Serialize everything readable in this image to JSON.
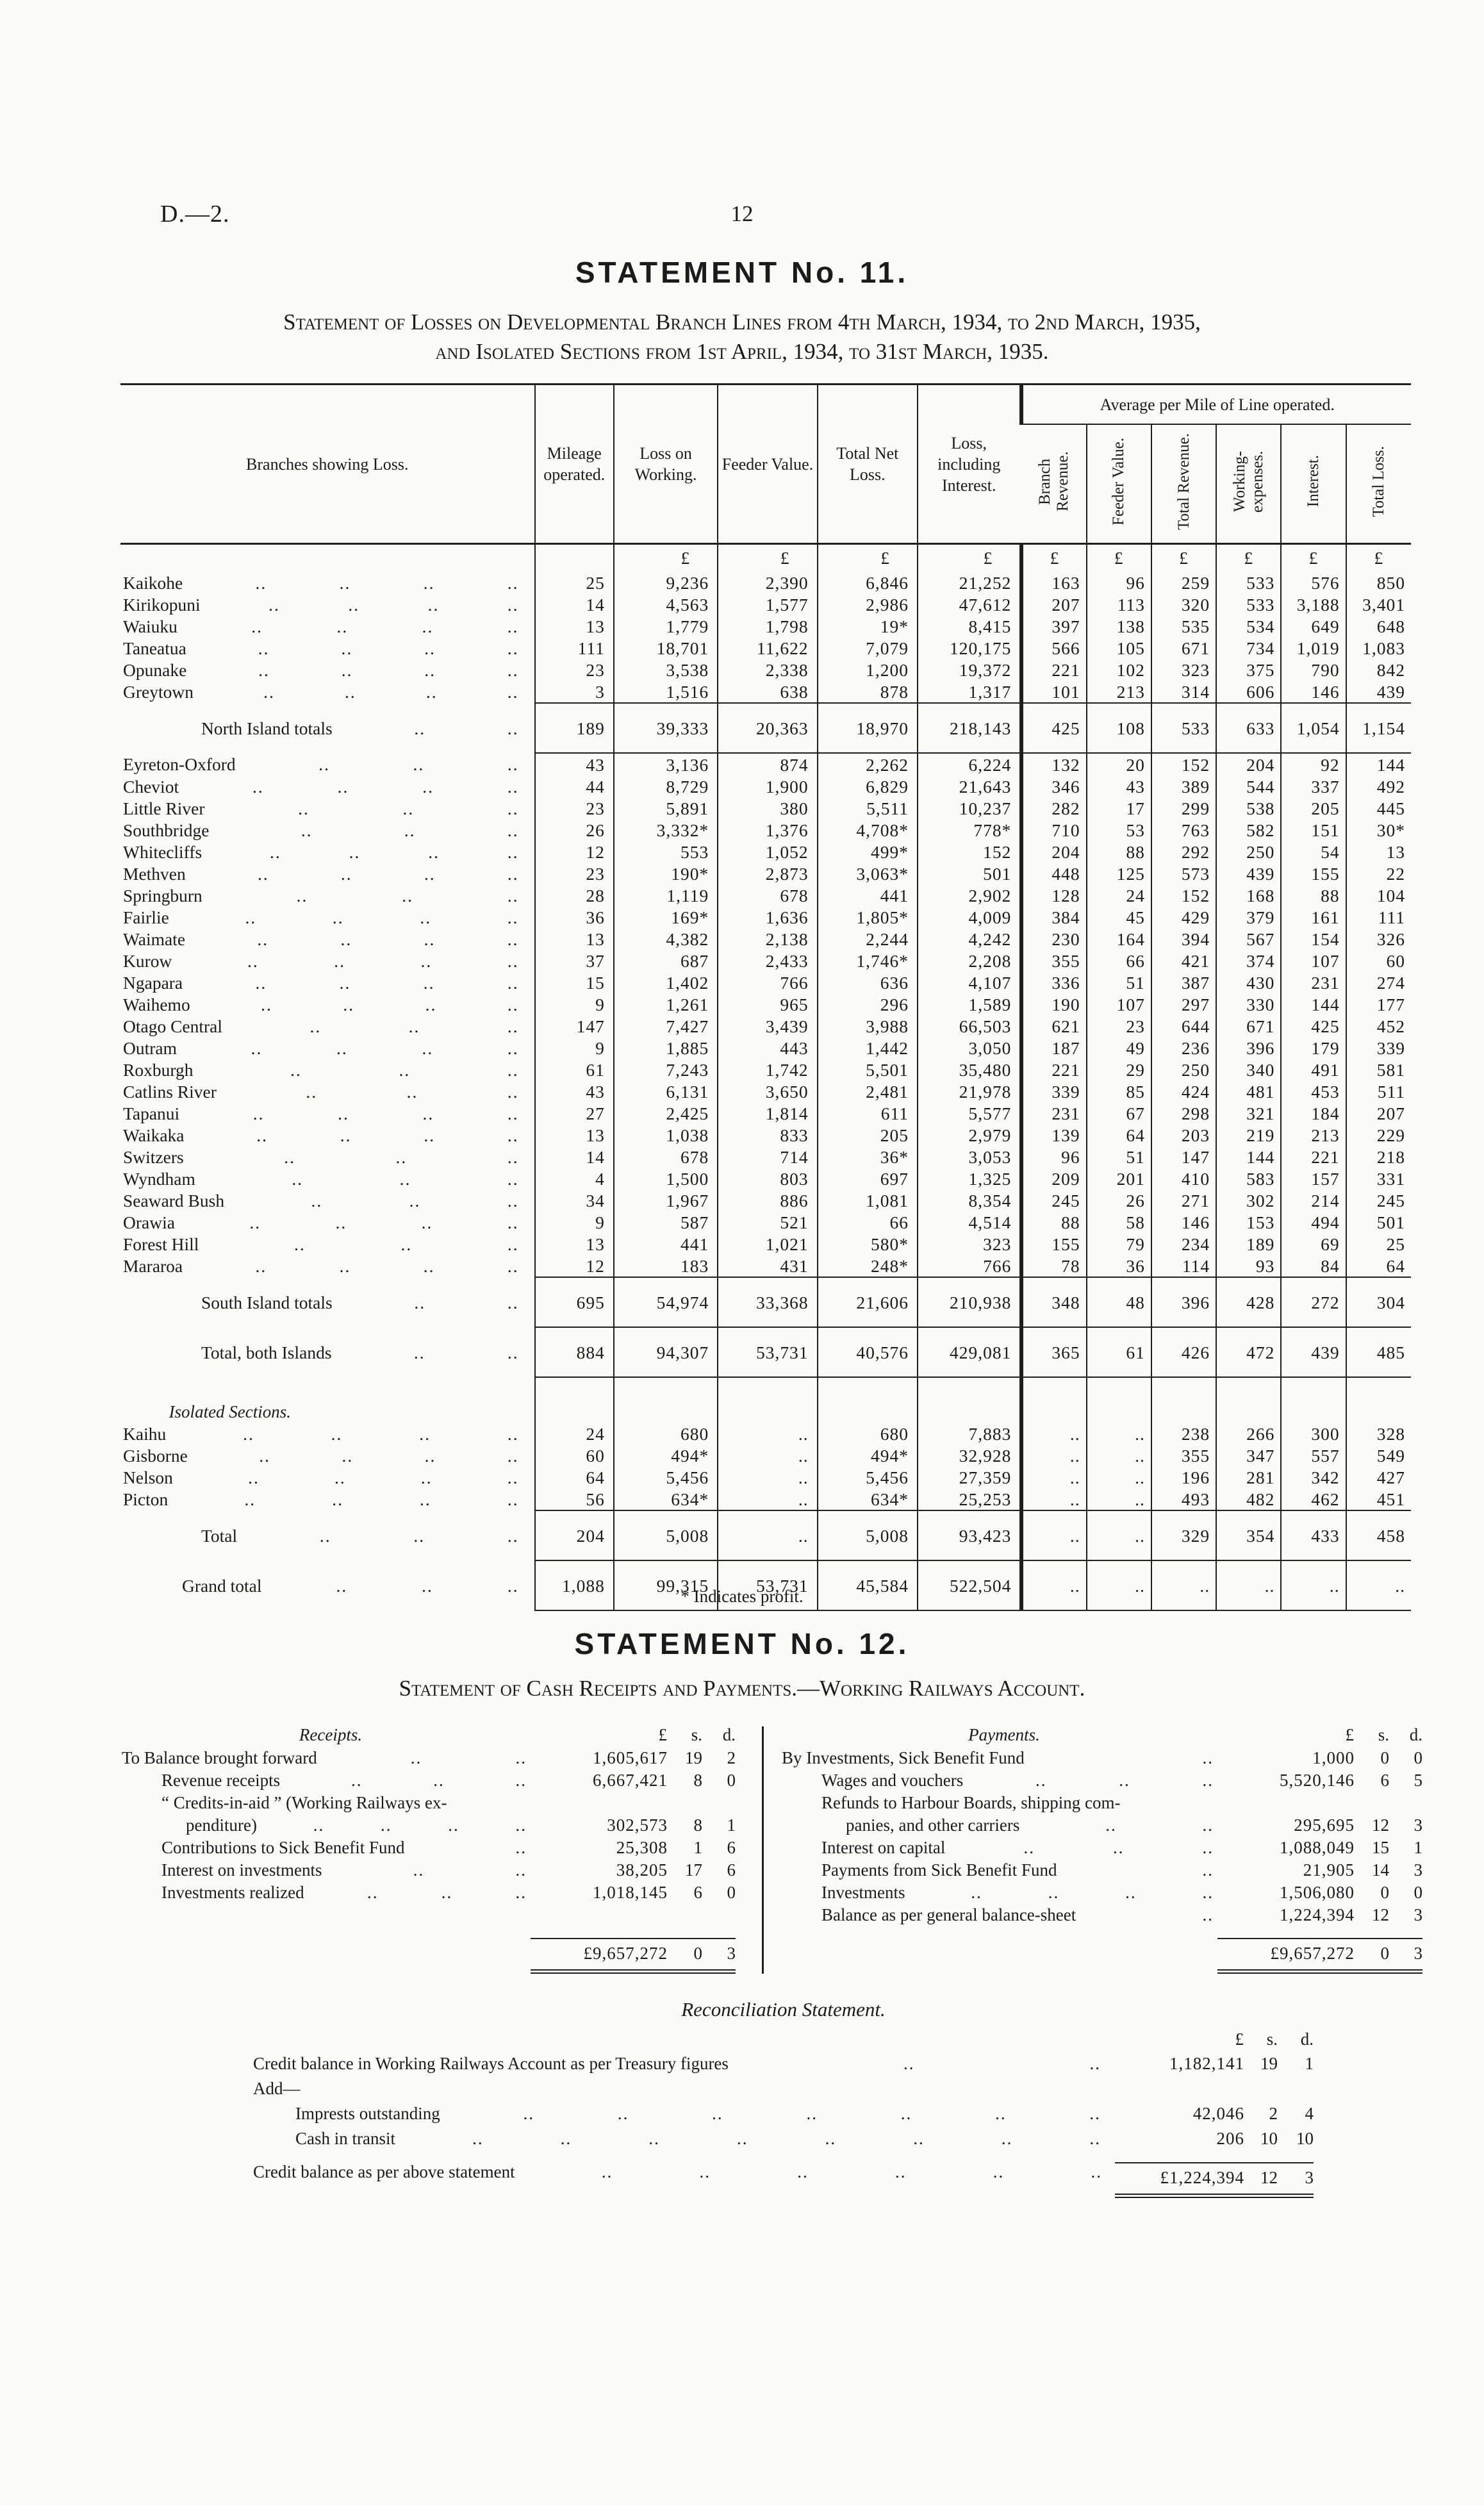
{
  "page": {
    "doc_ref": "D.—2.",
    "page_number": "12"
  },
  "statement11": {
    "title": "STATEMENT No. 11.",
    "subtitle_line1": "Statement of Losses on Developmental Branch Lines from 4th March, 1934, to 2nd March, 1935,",
    "subtitle_line2": "and Isolated Sections from 1st April, 1934, to 31st March, 1935.",
    "columns": [
      "Branches showing Loss.",
      "Mileage operated.",
      "Loss on Working.",
      "Feeder Value.",
      "Total Net Loss.",
      "Loss, including Interest."
    ],
    "avg_group_header": "Average per Mile of Line operated.",
    "avg_columns": [
      "Branch Revenue.",
      "Feeder Value.",
      "Total Revenue.",
      "Working-expenses.",
      "Interest.",
      "Total Loss."
    ],
    "currency_symbol": "£",
    "footnote": "* Indicates profit.",
    "rows": [
      {
        "t": "currency"
      },
      {
        "t": "data",
        "name": "Kaikohe",
        "l": 4,
        "v": [
          "25",
          "9,236",
          "2,390",
          "6,846",
          "21,252",
          "163",
          "96",
          "259",
          "533",
          "576",
          "850"
        ]
      },
      {
        "t": "data",
        "name": "Kirikopuni",
        "l": 4,
        "v": [
          "14",
          "4,563",
          "1,577",
          "2,986",
          "47,612",
          "207",
          "113",
          "320",
          "533",
          "3,188",
          "3,401"
        ]
      },
      {
        "t": "data",
        "name": "Waiuku",
        "l": 4,
        "v": [
          "13",
          "1,779",
          "1,798",
          "19*",
          "8,415",
          "397",
          "138",
          "535",
          "534",
          "649",
          "648"
        ]
      },
      {
        "t": "data",
        "name": "Taneatua",
        "l": 4,
        "v": [
          "111",
          "18,701",
          "11,622",
          "7,079",
          "120,175",
          "566",
          "105",
          "671",
          "734",
          "1,019",
          "1,083"
        ]
      },
      {
        "t": "data",
        "name": "Opunake",
        "l": 4,
        "v": [
          "23",
          "3,538",
          "2,338",
          "1,200",
          "19,372",
          "221",
          "102",
          "323",
          "375",
          "790",
          "842"
        ]
      },
      {
        "t": "data",
        "name": "Greytown",
        "l": 4,
        "v": [
          "3",
          "1,516",
          "638",
          "878",
          "1,317",
          "101",
          "213",
          "314",
          "606",
          "146",
          "439"
        ]
      },
      {
        "t": "total",
        "name": "North Island totals",
        "l": 2,
        "v": [
          "189",
          "39,333",
          "20,363",
          "18,970",
          "218,143",
          "425",
          "108",
          "533",
          "633",
          "1,054",
          "1,154"
        ]
      },
      {
        "t": "data",
        "name": "Eyreton-Oxford",
        "l": 3,
        "v": [
          "43",
          "3,136",
          "874",
          "2,262",
          "6,224",
          "132",
          "20",
          "152",
          "204",
          "92",
          "144"
        ]
      },
      {
        "t": "data",
        "name": "Cheviot",
        "l": 4,
        "v": [
          "44",
          "8,729",
          "1,900",
          "6,829",
          "21,643",
          "346",
          "43",
          "389",
          "544",
          "337",
          "492"
        ]
      },
      {
        "t": "data",
        "name": "Little River",
        "l": 3,
        "v": [
          "23",
          "5,891",
          "380",
          "5,511",
          "10,237",
          "282",
          "17",
          "299",
          "538",
          "205",
          "445"
        ]
      },
      {
        "t": "data",
        "name": "Southbridge",
        "l": 3,
        "v": [
          "26",
          "3,332*",
          "1,376",
          "4,708*",
          "778*",
          "710",
          "53",
          "763",
          "582",
          "151",
          "30*"
        ]
      },
      {
        "t": "data",
        "name": "Whitecliffs",
        "l": 4,
        "v": [
          "12",
          "553",
          "1,052",
          "499*",
          "152",
          "204",
          "88",
          "292",
          "250",
          "54",
          "13"
        ]
      },
      {
        "t": "data",
        "name": "Methven",
        "l": 4,
        "v": [
          "23",
          "190*",
          "2,873",
          "3,063*",
          "501",
          "448",
          "125",
          "573",
          "439",
          "155",
          "22"
        ]
      },
      {
        "t": "data",
        "name": "Springburn",
        "l": 3,
        "v": [
          "28",
          "1,119",
          "678",
          "441",
          "2,902",
          "128",
          "24",
          "152",
          "168",
          "88",
          "104"
        ]
      },
      {
        "t": "data",
        "name": "Fairlie",
        "l": 4,
        "v": [
          "36",
          "169*",
          "1,636",
          "1,805*",
          "4,009",
          "384",
          "45",
          "429",
          "379",
          "161",
          "111"
        ]
      },
      {
        "t": "data",
        "name": "Waimate",
        "l": 4,
        "v": [
          "13",
          "4,382",
          "2,138",
          "2,244",
          "4,242",
          "230",
          "164",
          "394",
          "567",
          "154",
          "326"
        ]
      },
      {
        "t": "data",
        "name": "Kurow",
        "l": 4,
        "v": [
          "37",
          "687",
          "2,433",
          "1,746*",
          "2,208",
          "355",
          "66",
          "421",
          "374",
          "107",
          "60"
        ]
      },
      {
        "t": "data",
        "name": "Ngapara",
        "l": 4,
        "v": [
          "15",
          "1,402",
          "766",
          "636",
          "4,107",
          "336",
          "51",
          "387",
          "430",
          "231",
          "274"
        ]
      },
      {
        "t": "data",
        "name": "Waihemo",
        "l": 4,
        "v": [
          "9",
          "1,261",
          "965",
          "296",
          "1,589",
          "190",
          "107",
          "297",
          "330",
          "144",
          "177"
        ]
      },
      {
        "t": "data",
        "name": "Otago Central",
        "l": 3,
        "v": [
          "147",
          "7,427",
          "3,439",
          "3,988",
          "66,503",
          "621",
          "23",
          "644",
          "671",
          "425",
          "452"
        ]
      },
      {
        "t": "data",
        "name": "Outram",
        "l": 4,
        "v": [
          "9",
          "1,885",
          "443",
          "1,442",
          "3,050",
          "187",
          "49",
          "236",
          "396",
          "179",
          "339"
        ]
      },
      {
        "t": "data",
        "name": "Roxburgh",
        "l": 3,
        "v": [
          "61",
          "7,243",
          "1,742",
          "5,501",
          "35,480",
          "221",
          "29",
          "250",
          "340",
          "491",
          "581"
        ]
      },
      {
        "t": "data",
        "name": "Catlins River",
        "l": 3,
        "v": [
          "43",
          "6,131",
          "3,650",
          "2,481",
          "21,978",
          "339",
          "85",
          "424",
          "481",
          "453",
          "511"
        ]
      },
      {
        "t": "data",
        "name": "Tapanui",
        "l": 4,
        "v": [
          "27",
          "2,425",
          "1,814",
          "611",
          "5,577",
          "231",
          "67",
          "298",
          "321",
          "184",
          "207"
        ]
      },
      {
        "t": "data",
        "name": "Waikaka",
        "l": 4,
        "v": [
          "13",
          "1,038",
          "833",
          "205",
          "2,979",
          "139",
          "64",
          "203",
          "219",
          "213",
          "229"
        ]
      },
      {
        "t": "data",
        "name": "Switzers",
        "l": 3,
        "v": [
          "14",
          "678",
          "714",
          "36*",
          "3,053",
          "96",
          "51",
          "147",
          "144",
          "221",
          "218"
        ]
      },
      {
        "t": "data",
        "name": "Wyndham",
        "l": 3,
        "v": [
          "4",
          "1,500",
          "803",
          "697",
          "1,325",
          "209",
          "201",
          "410",
          "583",
          "157",
          "331"
        ]
      },
      {
        "t": "data",
        "name": "Seaward Bush",
        "l": 3,
        "v": [
          "34",
          "1,967",
          "886",
          "1,081",
          "8,354",
          "245",
          "26",
          "271",
          "302",
          "214",
          "245"
        ]
      },
      {
        "t": "data",
        "name": "Orawia",
        "l": 4,
        "v": [
          "9",
          "587",
          "521",
          "66",
          "4,514",
          "88",
          "58",
          "146",
          "153",
          "494",
          "501"
        ]
      },
      {
        "t": "data",
        "name": "Forest Hill",
        "l": 3,
        "v": [
          "13",
          "441",
          "1,021",
          "580*",
          "323",
          "155",
          "79",
          "234",
          "189",
          "69",
          "25"
        ]
      },
      {
        "t": "data",
        "name": "Mararoa",
        "l": 4,
        "v": [
          "12",
          "183",
          "431",
          "248*",
          "766",
          "78",
          "36",
          "114",
          "93",
          "84",
          "64"
        ]
      },
      {
        "t": "total",
        "name": "South Island totals",
        "l": 2,
        "v": [
          "695",
          "54,974",
          "33,368",
          "21,606",
          "210,938",
          "348",
          "48",
          "396",
          "428",
          "272",
          "304"
        ]
      },
      {
        "t": "total",
        "name": "Total, both Islands",
        "l": 2,
        "v": [
          "884",
          "94,307",
          "53,731",
          "40,576",
          "429,081",
          "365",
          "61",
          "426",
          "472",
          "439",
          "485"
        ]
      },
      {
        "t": "section",
        "name": "Isolated Sections."
      },
      {
        "t": "data",
        "name": "Kaihu",
        "l": 4,
        "v": [
          "24",
          "680",
          "..",
          "680",
          "7,883",
          "..",
          "..",
          "238",
          "266",
          "300",
          "328"
        ]
      },
      {
        "t": "data",
        "name": "Gisborne",
        "l": 4,
        "v": [
          "60",
          "494*",
          "..",
          "494*",
          "32,928",
          "..",
          "..",
          "355",
          "347",
          "557",
          "549"
        ]
      },
      {
        "t": "data",
        "name": "Nelson",
        "l": 4,
        "v": [
          "64",
          "5,456",
          "..",
          "5,456",
          "27,359",
          "..",
          "..",
          "196",
          "281",
          "342",
          "427"
        ]
      },
      {
        "t": "data",
        "name": "Picton",
        "l": 4,
        "v": [
          "56",
          "634*",
          "..",
          "634*",
          "25,253",
          "..",
          "..",
          "493",
          "482",
          "462",
          "451"
        ]
      },
      {
        "t": "total",
        "name": "Total",
        "l": 3,
        "v": [
          "204",
          "5,008",
          "..",
          "5,008",
          "93,423",
          "..",
          "..",
          "329",
          "354",
          "433",
          "458"
        ]
      },
      {
        "t": "grand",
        "name": "Grand total",
        "l": 3,
        "v": [
          "1,088",
          "99,315",
          "53,731",
          "45,584",
          "522,504",
          "..",
          "..",
          "..",
          "..",
          "..",
          ".."
        ]
      }
    ]
  },
  "statement12": {
    "title": "STATEMENT No. 12.",
    "subtitle": "Statement of Cash Receipts and Payments.—Working Railways Account.",
    "col_pound": "£",
    "col_s": "s.",
    "col_d": "d.",
    "receipts": {
      "heading": "Receipts.",
      "items": [
        {
          "label": "To Balance brought forward",
          "first": true,
          "l": 2,
          "a": "1,605,617",
          "s": "19",
          "d": "2"
        },
        {
          "label": "Revenue receipts",
          "l": 3,
          "a": "6,667,421",
          "s": "8",
          "d": "0"
        },
        {
          "label": "“ Credits-in-aid ”  (Working  Railways  ex-",
          "label2": "penditure)",
          "l2": 4,
          "a": "302,573",
          "s": "8",
          "d": "1"
        },
        {
          "label": "Contributions to Sick Benefit Fund",
          "l": 1,
          "a": "25,308",
          "s": "1",
          "d": "6"
        },
        {
          "label": "Interest on investments",
          "l": 2,
          "a": "38,205",
          "s": "17",
          "d": "6"
        },
        {
          "label": "Investments realized",
          "l": 3,
          "a": "1,018,145",
          "s": "6",
          "d": "0"
        }
      ],
      "total": {
        "a": "£9,657,272",
        "s": "0",
        "d": "3"
      }
    },
    "payments": {
      "heading": "Payments.",
      "items": [
        {
          "label": "By Investments, Sick Benefit Fund",
          "first": true,
          "l": 1,
          "a": "1,000",
          "s": "0",
          "d": "0"
        },
        {
          "label": "Wages and vouchers",
          "l": 3,
          "a": "5,520,146",
          "s": "6",
          "d": "5"
        },
        {
          "label": "Refunds to Harbour Boards, shipping com-",
          "label2": "panies, and other carriers",
          "l2": 2,
          "a": "295,695",
          "s": "12",
          "d": "3"
        },
        {
          "label": "Interest on capital",
          "l": 3,
          "a": "1,088,049",
          "s": "15",
          "d": "1"
        },
        {
          "label": "Payments from Sick Benefit Fund",
          "l": 1,
          "a": "21,905",
          "s": "14",
          "d": "3"
        },
        {
          "label": "Investments",
          "l": 4,
          "a": "1,506,080",
          "s": "0",
          "d": "0"
        },
        {
          "label": "Balance as per general balance-sheet",
          "l": 1,
          "a": "1,224,394",
          "s": "12",
          "d": "3"
        }
      ],
      "total": {
        "a": "£9,657,272",
        "s": "0",
        "d": "3"
      }
    }
  },
  "reconciliation": {
    "heading": "Reconciliation Statement.",
    "col_pound": "£",
    "col_s": "s.",
    "col_d": "d.",
    "lines": [
      {
        "label": "Credit balance in Working Railways Account as per Treasury figures",
        "l": 2,
        "a": "1,182,141",
        "s": "19",
        "d": "1"
      },
      {
        "label": "Add—",
        "noamt": true
      },
      {
        "label": "Imprests outstanding",
        "ind": true,
        "l": 7,
        "a": "42,046",
        "s": "2",
        "d": "4"
      },
      {
        "label": "Cash in transit",
        "ind": true,
        "l": 8,
        "a": "206",
        "s": "10",
        "d": "10"
      }
    ],
    "final": {
      "label": "Credit balance as per above statement",
      "l": 6,
      "a": "£1,224,394",
      "s": "12",
      "d": "3"
    }
  }
}
